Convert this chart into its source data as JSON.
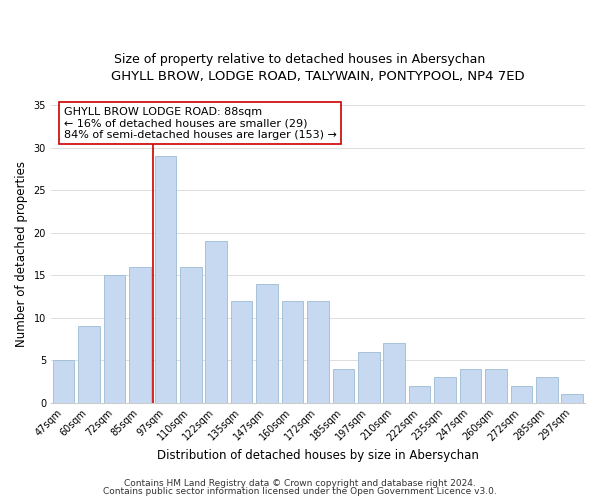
{
  "title": "GHYLL BROW, LODGE ROAD, TALYWAIN, PONTYPOOL, NP4 7ED",
  "subtitle": "Size of property relative to detached houses in Abersychan",
  "xlabel": "Distribution of detached houses by size in Abersychan",
  "ylabel": "Number of detached properties",
  "bar_labels": [
    "47sqm",
    "60sqm",
    "72sqm",
    "85sqm",
    "97sqm",
    "110sqm",
    "122sqm",
    "135sqm",
    "147sqm",
    "160sqm",
    "172sqm",
    "185sqm",
    "197sqm",
    "210sqm",
    "222sqm",
    "235sqm",
    "247sqm",
    "260sqm",
    "272sqm",
    "285sqm",
    "297sqm"
  ],
  "bar_values": [
    5,
    9,
    15,
    16,
    29,
    16,
    19,
    12,
    14,
    12,
    12,
    4,
    6,
    7,
    2,
    3,
    4,
    4,
    2,
    3,
    1
  ],
  "bar_color": "#c6d9f0",
  "bar_edge_color": "#9dbcd4",
  "reference_line_x": 3.5,
  "reference_line_color": "#cc0000",
  "annotation_line1": "GHYLL BROW LODGE ROAD: 88sqm",
  "annotation_line2": "← 16% of detached houses are smaller (29)",
  "annotation_line3": "84% of semi-detached houses are larger (153) →",
  "annotation_box_color": "#ffffff",
  "annotation_box_edge": "#cc0000",
  "ylim": [
    0,
    35
  ],
  "yticks": [
    0,
    5,
    10,
    15,
    20,
    25,
    30,
    35
  ],
  "footer_line1": "Contains HM Land Registry data © Crown copyright and database right 2024.",
  "footer_line2": "Contains public sector information licensed under the Open Government Licence v3.0.",
  "background_color": "#ffffff",
  "grid_color": "#d8d8d8",
  "title_fontsize": 9.5,
  "subtitle_fontsize": 9,
  "axis_label_fontsize": 8.5,
  "tick_fontsize": 7,
  "annotation_fontsize": 8,
  "footer_fontsize": 6.5
}
